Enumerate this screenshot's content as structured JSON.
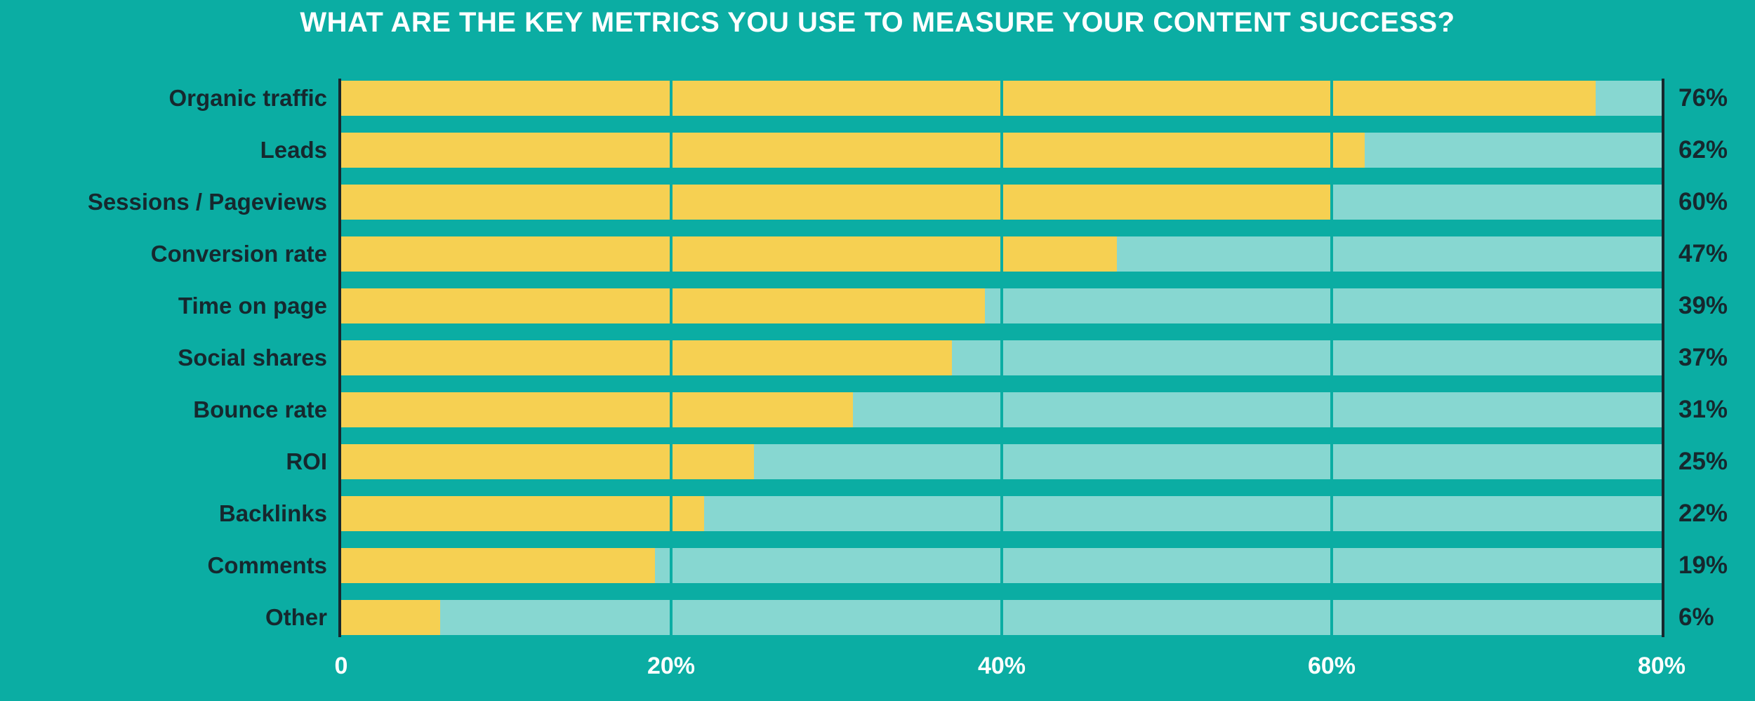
{
  "colors": {
    "background": "#0bada3",
    "bar_track": "#87d7d1",
    "bar_fill": "#f6d052",
    "ink": "#16282e",
    "title_text": "#ffffff",
    "tick_text": "#ffffff"
  },
  "chart_data": {
    "type": "bar",
    "orientation": "horizontal",
    "title": "WHAT ARE THE KEY METRICS YOU USE TO MEASURE YOUR CONTENT SUCCESS?",
    "categories": [
      "Organic traffic",
      "Leads",
      "Sessions / Pageviews",
      "Conversion rate",
      "Time on page",
      "Social shares",
      "Bounce rate",
      "ROI",
      "Backlinks",
      "Comments",
      "Other"
    ],
    "values": [
      76,
      62,
      60,
      47,
      39,
      37,
      31,
      25,
      22,
      19,
      6
    ],
    "value_labels": [
      "76%",
      "62%",
      "60%",
      "47%",
      "39%",
      "37%",
      "31%",
      "25%",
      "22%",
      "19%",
      "6%"
    ],
    "xlabel": "",
    "ylabel": "",
    "xlim": [
      0,
      80
    ],
    "x_ticks": [
      "0",
      "20%",
      "40%",
      "60%",
      "80%"
    ],
    "gridline_positions_pct": [
      20,
      40,
      60
    ],
    "grid": true,
    "legend": false
  }
}
